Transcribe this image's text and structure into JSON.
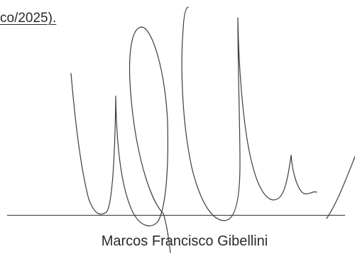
{
  "document": {
    "top_text_fragment": "co/2025).",
    "signature": {
      "signer_name": "Marcos Francisco Gibellini"
    }
  }
}
